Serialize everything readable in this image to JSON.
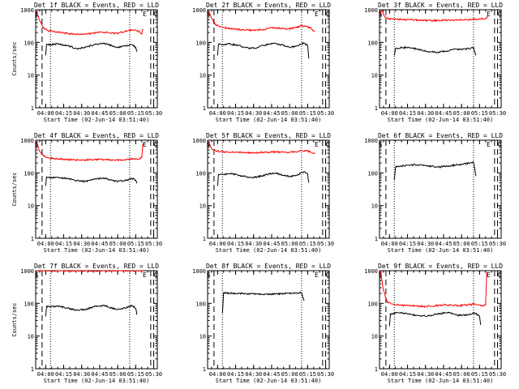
{
  "colors": {
    "events": "#000000",
    "lld": "#ff0000",
    "axis": "#000000",
    "background": "#ffffff"
  },
  "chart_data": [
    {
      "type": "line",
      "title": "Det 1f BLACK = Events, RED = LLD",
      "xlabel": "Start Time (02-Jun-14 03:51:40)",
      "ylabel": "Counts/sec",
      "yscale": "log",
      "ylim": [
        1,
        1000
      ],
      "xticks": [
        "04:00",
        "04:15",
        "04:30",
        "04:45",
        "05:00",
        "05:15",
        "05:30"
      ],
      "xlim": [
        "03:51:40",
        "05:33:00"
      ],
      "markers": {
        "S": "03:52:20",
        "E": "05:22:30",
        "C": "05:31:40"
      },
      "dashed_lines": [
        "03:57:00",
        "05:27:30",
        "05:30:00"
      ],
      "dotted_lines": [
        "04:04:00",
        "05:10:00"
      ],
      "series": [
        {
          "color": "lld",
          "x": [
            "03:52:20",
            "03:55:00",
            "03:58:00",
            "04:02:00",
            "04:08:00",
            "04:15:00",
            "04:22:00",
            "04:30:00",
            "04:38:00",
            "04:45:00",
            "04:52:00",
            "04:58:00",
            "05:05:00",
            "05:10:00",
            "05:15:00",
            "05:18:00",
            "05:20:00",
            "05:21:00"
          ],
          "values": [
            900,
            480,
            280,
            230,
            210,
            195,
            180,
            175,
            190,
            205,
            200,
            185,
            210,
            240,
            230,
            210,
            180,
            260
          ]
        },
        {
          "color": "events",
          "x": [
            "04:00:00",
            "04:00:45",
            "04:04:00",
            "04:10:00",
            "04:18:00",
            "04:26:00",
            "04:33:00",
            "04:40:00",
            "04:48:00",
            "04:55:00",
            "05:00:00",
            "05:06:00",
            "05:12:00",
            "05:15:00",
            "05:16:00"
          ],
          "values": [
            40,
            88,
            85,
            90,
            80,
            65,
            70,
            85,
            95,
            80,
            70,
            78,
            85,
            70,
            52
          ]
        }
      ]
    },
    {
      "type": "line",
      "title": "Det 2f BLACK = Events, RED = LLD",
      "xlabel": "Start Time (02-Jun-14 03:51:40)",
      "ylabel": "",
      "yscale": "log",
      "ylim": [
        1,
        1000
      ],
      "xticks": [
        "04:00",
        "04:15",
        "04:30",
        "04:45",
        "05:00",
        "05:15",
        "05:30"
      ],
      "xlim": [
        "03:51:40",
        "05:33:00"
      ],
      "markers": {
        "S": "03:52:20",
        "E": "05:22:30",
        "C": "05:31:40"
      },
      "dashed_lines": [
        "03:57:00",
        "05:27:30",
        "05:30:00"
      ],
      "dotted_lines": [
        "04:04:00",
        "05:10:00"
      ],
      "series": [
        {
          "color": "lld",
          "x": [
            "03:52:20",
            "03:55:00",
            "03:58:00",
            "04:02:00",
            "04:08:00",
            "04:15:00",
            "04:22:00",
            "04:30:00",
            "04:38:00",
            "04:45:00",
            "04:52:00",
            "04:58:00",
            "05:05:00",
            "05:10:00",
            "05:15:00",
            "05:18:00",
            "05:20:00",
            "05:21:00"
          ],
          "values": [
            900,
            550,
            360,
            300,
            270,
            255,
            240,
            235,
            250,
            280,
            270,
            255,
            280,
            330,
            300,
            270,
            230,
            220
          ]
        },
        {
          "color": "events",
          "x": [
            "04:00:00",
            "04:00:45",
            "04:04:00",
            "04:10:00",
            "04:18:00",
            "04:26:00",
            "04:33:00",
            "04:40:00",
            "04:48:00",
            "04:55:00",
            "05:00:00",
            "05:06:00",
            "05:12:00",
            "05:15:00",
            "05:16:00"
          ],
          "values": [
            40,
            88,
            85,
            90,
            80,
            65,
            70,
            85,
            95,
            80,
            70,
            78,
            95,
            80,
            32
          ]
        }
      ]
    },
    {
      "type": "line",
      "title": "Det 3f BLACK = Events, RED = LLD",
      "xlabel": "Start Time (02-Jun-14 03:51:40)",
      "ylabel": "",
      "yscale": "log",
      "ylim": [
        1,
        1000
      ],
      "xticks": [
        "04:00",
        "04:15",
        "04:30",
        "04:45",
        "05:00",
        "05:15",
        "05:30"
      ],
      "xlim": [
        "03:51:40",
        "05:33:00"
      ],
      "markers": {
        "S": "03:52:20",
        "E": "05:22:30",
        "C": "05:31:40"
      },
      "dashed_lines": [
        "03:57:00",
        "05:27:30",
        "05:30:00"
      ],
      "dotted_lines": [
        "04:04:00",
        "05:10:00"
      ],
      "series": [
        {
          "color": "lld",
          "x": [
            "03:52:20",
            "03:53:30",
            "03:56:00",
            "04:00:00",
            "04:10:00",
            "04:20:00",
            "04:30:00",
            "04:40:00",
            "04:50:00",
            "05:00:00",
            "05:10:00",
            "05:15:00",
            "05:20:00",
            "05:22:00"
          ],
          "values": [
            700,
            1000,
            600,
            520,
            500,
            490,
            470,
            470,
            480,
            490,
            510,
            520,
            550,
            600
          ]
        },
        {
          "color": "events",
          "x": [
            "04:04:00",
            "04:05:00",
            "04:10:00",
            "04:18:00",
            "04:26:00",
            "04:33:00",
            "04:40:00",
            "04:48:00",
            "04:55:00",
            "05:00:00",
            "05:06:00",
            "05:10:00",
            "05:12:00"
          ],
          "values": [
            40,
            65,
            70,
            68,
            58,
            52,
            50,
            55,
            62,
            60,
            65,
            70,
            40
          ]
        }
      ]
    },
    {
      "type": "line",
      "title": "Det 4f BLACK = Events, RED = LLD",
      "xlabel": "Start Time (02-Jun-14 03:51:40)",
      "ylabel": "Counts/sec",
      "yscale": "log",
      "ylim": [
        1,
        1000
      ],
      "xticks": [
        "04:00",
        "04:15",
        "04:30",
        "04:45",
        "05:00",
        "05:15",
        "05:30"
      ],
      "xlim": [
        "03:51:40",
        "05:33:00"
      ],
      "markers": {
        "S": "03:52:20",
        "E": "05:22:30",
        "C": "05:31:40"
      },
      "dashed_lines": [
        "03:57:00",
        "05:27:30",
        "05:30:00"
      ],
      "dotted_lines": [
        "04:04:00",
        "05:10:00"
      ],
      "series": [
        {
          "color": "lld",
          "x": [
            "03:52:20",
            "03:55:00",
            "03:58:00",
            "04:02:00",
            "04:08:00",
            "04:15:00",
            "04:22:00",
            "04:30:00",
            "04:38:00",
            "04:45:00",
            "04:52:00",
            "04:58:00",
            "05:05:00",
            "05:10:00",
            "05:15:00",
            "05:18:00",
            "05:20:00",
            "05:21:00"
          ],
          "values": [
            900,
            450,
            330,
            290,
            270,
            260,
            250,
            245,
            255,
            260,
            250,
            245,
            250,
            260,
            270,
            260,
            300,
            800
          ]
        },
        {
          "color": "events",
          "x": [
            "04:00:00",
            "04:00:45",
            "04:04:00",
            "04:10:00",
            "04:18:00",
            "04:26:00",
            "04:33:00",
            "04:40:00",
            "04:48:00",
            "04:55:00",
            "05:00:00",
            "05:06:00",
            "05:12:00",
            "05:15:00",
            "05:16:00"
          ],
          "values": [
            40,
            75,
            72,
            72,
            68,
            58,
            55,
            62,
            70,
            60,
            55,
            58,
            68,
            60,
            48
          ]
        }
      ]
    },
    {
      "type": "line",
      "title": "Det 5f BLACK = Events, RED = LLD",
      "xlabel": "Start Time (02-Jun-14 03:51:40)",
      "ylabel": "",
      "yscale": "log",
      "ylim": [
        1,
        1000
      ],
      "xticks": [
        "04:00",
        "04:15",
        "04:30",
        "04:45",
        "05:00",
        "05:15",
        "05:30"
      ],
      "xlim": [
        "03:51:40",
        "05:33:00"
      ],
      "markers": {
        "S": "03:52:20",
        "E": "05:22:30",
        "C": "05:31:40"
      },
      "dashed_lines": [
        "03:57:00",
        "05:27:30",
        "05:30:00"
      ],
      "dotted_lines": [
        "04:04:00",
        "05:10:00"
      ],
      "series": [
        {
          "color": "lld",
          "x": [
            "03:52:20",
            "03:55:00",
            "03:58:00",
            "04:02:00",
            "04:08:00",
            "04:15:00",
            "04:22:00",
            "04:30:00",
            "04:38:00",
            "04:45:00",
            "04:52:00",
            "04:58:00",
            "05:05:00",
            "05:10:00",
            "05:15:00",
            "05:18:00",
            "05:20:00",
            "05:21:00"
          ],
          "values": [
            900,
            550,
            480,
            450,
            440,
            430,
            420,
            410,
            420,
            440,
            430,
            420,
            440,
            480,
            460,
            430,
            400,
            380
          ]
        },
        {
          "color": "events",
          "x": [
            "04:00:00",
            "04:00:45",
            "04:04:00",
            "04:10:00",
            "04:18:00",
            "04:26:00",
            "04:33:00",
            "04:40:00",
            "04:48:00",
            "04:55:00",
            "05:00:00",
            "05:06:00",
            "05:12:00",
            "05:15:00",
            "05:16:00"
          ],
          "values": [
            40,
            90,
            88,
            95,
            85,
            72,
            75,
            88,
            100,
            85,
            78,
            85,
            110,
            90,
            50
          ]
        }
      ]
    },
    {
      "type": "line",
      "title": "Det 6f BLACK = Events, RED = LLD",
      "xlabel": "Start Time (02-Jun-14 03:51:40)",
      "ylabel": "",
      "yscale": "log",
      "ylim": [
        1,
        1000
      ],
      "xticks": [
        "04:00",
        "04:15",
        "04:30",
        "04:45",
        "05:00",
        "05:15",
        "05:30"
      ],
      "xlim": [
        "03:51:40",
        "05:33:00"
      ],
      "markers": {
        "S": "03:52:20",
        "E": "05:22:30",
        "C": "05:31:40"
      },
      "dashed_lines": [
        "03:57:00",
        "05:27:30",
        "05:30:00"
      ],
      "dotted_lines": [
        "04:04:00",
        "05:10:00"
      ],
      "series": [
        {
          "color": "events",
          "x": [
            "04:04:00",
            "04:05:00",
            "04:10:00",
            "04:18:00",
            "04:26:00",
            "04:33:00",
            "04:40:00",
            "04:48:00",
            "04:55:00",
            "05:00:00",
            "05:06:00",
            "05:10:00",
            "05:12:00"
          ],
          "values": [
            60,
            150,
            160,
            175,
            180,
            165,
            150,
            160,
            175,
            180,
            200,
            210,
            80
          ]
        }
      ]
    },
    {
      "type": "line",
      "title": "Det 7f BLACK = Events, RED = LLD",
      "xlabel": "Start Time (02-Jun-14 03:51:40)",
      "ylabel": "Counts/sec",
      "yscale": "log",
      "ylim": [
        1,
        1000
      ],
      "xticks": [
        "04:00",
        "04:15",
        "04:30",
        "04:45",
        "05:00",
        "05:15",
        "05:30"
      ],
      "xlim": [
        "03:51:40",
        "05:33:00"
      ],
      "markers": {
        "S": "03:52:20",
        "E": "05:22:30",
        "C": "05:31:40"
      },
      "dashed_lines": [
        "03:57:00",
        "05:27:30",
        "05:30:00"
      ],
      "dotted_lines": [
        "04:04:00",
        "05:10:00"
      ],
      "series": [
        {
          "color": "lld",
          "x": [
            "03:52:20",
            "04:00:00",
            "04:15:00",
            "04:30:00",
            "04:45:00",
            "05:00:00",
            "05:15:00",
            "05:21:00"
          ],
          "values": [
            1000,
            1000,
            990,
            980,
            990,
            1000,
            1000,
            1000
          ]
        },
        {
          "color": "events",
          "x": [
            "04:00:00",
            "04:00:45",
            "04:04:00",
            "04:10:00",
            "04:18:00",
            "04:26:00",
            "04:33:00",
            "04:40:00",
            "04:48:00",
            "04:55:00",
            "05:00:00",
            "05:06:00",
            "05:12:00",
            "05:15:00",
            "05:16:00"
          ],
          "values": [
            40,
            80,
            78,
            82,
            72,
            62,
            65,
            78,
            88,
            72,
            65,
            72,
            85,
            70,
            45
          ]
        }
      ]
    },
    {
      "type": "line",
      "title": "Det 8f BLACK = Events, RED = LLD",
      "xlabel": "Start Time (02-Jun-14 03:51:40)",
      "ylabel": "",
      "yscale": "log",
      "ylim": [
        1,
        1000
      ],
      "xticks": [
        "04:00",
        "04:15",
        "04:30",
        "04:45",
        "05:00",
        "05:15",
        "05:30"
      ],
      "xlim": [
        "03:51:40",
        "05:33:00"
      ],
      "markers": {
        "S": "03:52:20",
        "E": "05:22:30",
        "C": "05:31:40"
      },
      "dashed_lines": [
        "03:57:00",
        "05:27:30",
        "05:30:00"
      ],
      "dotted_lines": [
        "04:04:00",
        "05:10:00"
      ],
      "series": [
        {
          "color": "events",
          "x": [
            "04:04:00",
            "04:05:00",
            "04:10:00",
            "04:20:00",
            "04:30:00",
            "04:40:00",
            "04:50:00",
            "05:00:00",
            "05:05:00",
            "05:10:00",
            "05:12:00"
          ],
          "values": [
            50,
            210,
            205,
            200,
            195,
            190,
            195,
            200,
            205,
            210,
            120
          ]
        }
      ]
    },
    {
      "type": "line",
      "title": "Det 9f BLACK = Events, RED = LLD",
      "xlabel": "Start Time (02-Jun-14 03:51:40)",
      "ylabel": "",
      "yscale": "log",
      "ylim": [
        1,
        1000
      ],
      "xticks": [
        "04:00",
        "04:15",
        "04:30",
        "04:45",
        "05:00",
        "05:15",
        "05:30"
      ],
      "xlim": [
        "03:51:40",
        "05:33:00"
      ],
      "markers": {
        "S": "03:52:20",
        "E": "05:22:30",
        "C": "05:31:40"
      },
      "dashed_lines": [
        "03:57:00",
        "05:27:30",
        "05:30:00"
      ],
      "dotted_lines": [
        "04:04:00",
        "05:10:00"
      ],
      "series": [
        {
          "color": "lld",
          "x": [
            "03:52:20",
            "03:55:00",
            "03:58:00",
            "04:02:00",
            "04:08:00",
            "04:15:00",
            "04:22:00",
            "04:30:00",
            "04:38:00",
            "04:45:00",
            "04:52:00",
            "04:58:00",
            "05:05:00",
            "05:10:00",
            "05:15:00",
            "05:18:00",
            "05:20:00",
            "05:21:00"
          ],
          "values": [
            1000,
            250,
            110,
            95,
            88,
            85,
            82,
            80,
            85,
            90,
            88,
            85,
            90,
            95,
            90,
            82,
            90,
            900
          ]
        },
        {
          "color": "events",
          "x": [
            "04:00:00",
            "04:00:45",
            "04:04:00",
            "04:10:00",
            "04:18:00",
            "04:26:00",
            "04:33:00",
            "04:40:00",
            "04:48:00",
            "04:55:00",
            "05:00:00",
            "05:06:00",
            "05:12:00",
            "05:15:00",
            "05:16:00"
          ],
          "values": [
            20,
            48,
            50,
            52,
            46,
            40,
            42,
            48,
            52,
            46,
            42,
            45,
            50,
            40,
            22
          ]
        }
      ]
    }
  ]
}
